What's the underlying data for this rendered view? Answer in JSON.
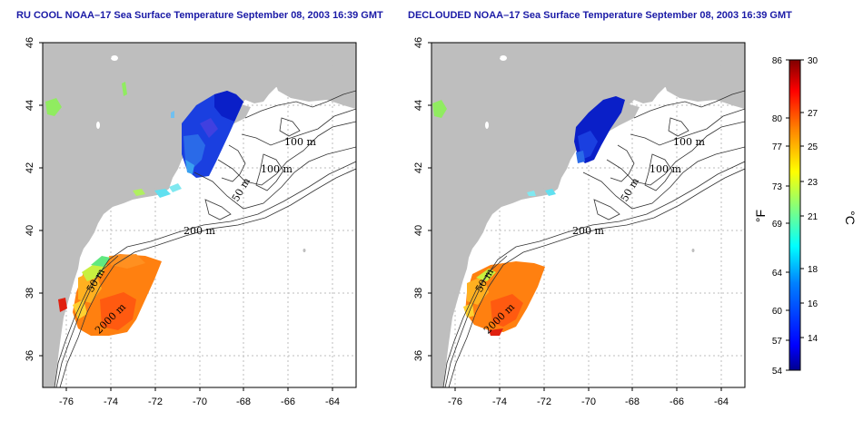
{
  "panels": [
    {
      "id": "left",
      "title": "RU COOL NOAA–17 Sea Surface Temperature September 08, 2003 16:39 GMT",
      "variant": "cool",
      "xticks": [
        "-76",
        "-74",
        "-72",
        "-70",
        "-68",
        "-66",
        "-64"
      ],
      "yticks": [
        "36",
        "38",
        "40",
        "42",
        "44",
        "46"
      ],
      "contour_labels": [
        "100 m",
        "100 m",
        "50 m",
        "200 m",
        "50 m",
        "2000 m"
      ]
    },
    {
      "id": "right",
      "title": "DECLOUDED NOAA–17 Sea Surface Temperature September 08, 2003 16:39 GMT",
      "variant": "declouded",
      "xticks": [
        "-76",
        "-74",
        "-72",
        "-70",
        "-68",
        "-66",
        "-64"
      ],
      "yticks": [
        "36",
        "38",
        "40",
        "42",
        "44",
        "46"
      ],
      "contour_labels": [
        "100 m",
        "100 m",
        "50 m",
        "200 m",
        "50 m",
        "2000 m"
      ]
    }
  ],
  "colorbar": {
    "fahrenheit_ticks": [
      "86",
      "80",
      "77",
      "73",
      "69",
      "64",
      "60",
      "57",
      "54"
    ],
    "celsius_ticks": [
      "30",
      "27",
      "25",
      "23",
      "21",
      "18",
      "16",
      "14"
    ],
    "fahrenheit_unit": "°F",
    "celsius_unit": "°C",
    "range_c": [
      12.2,
      30
    ],
    "colors": [
      "#00008f",
      "#0000ff",
      "#0080ff",
      "#00ffff",
      "#80ff80",
      "#ffff00",
      "#ff8000",
      "#ff0000",
      "#800000"
    ]
  },
  "colors": {
    "land": "#bebebe",
    "ocean": "#ffffff",
    "grid": "#bdbdbd",
    "title": "#1a1aa6"
  }
}
